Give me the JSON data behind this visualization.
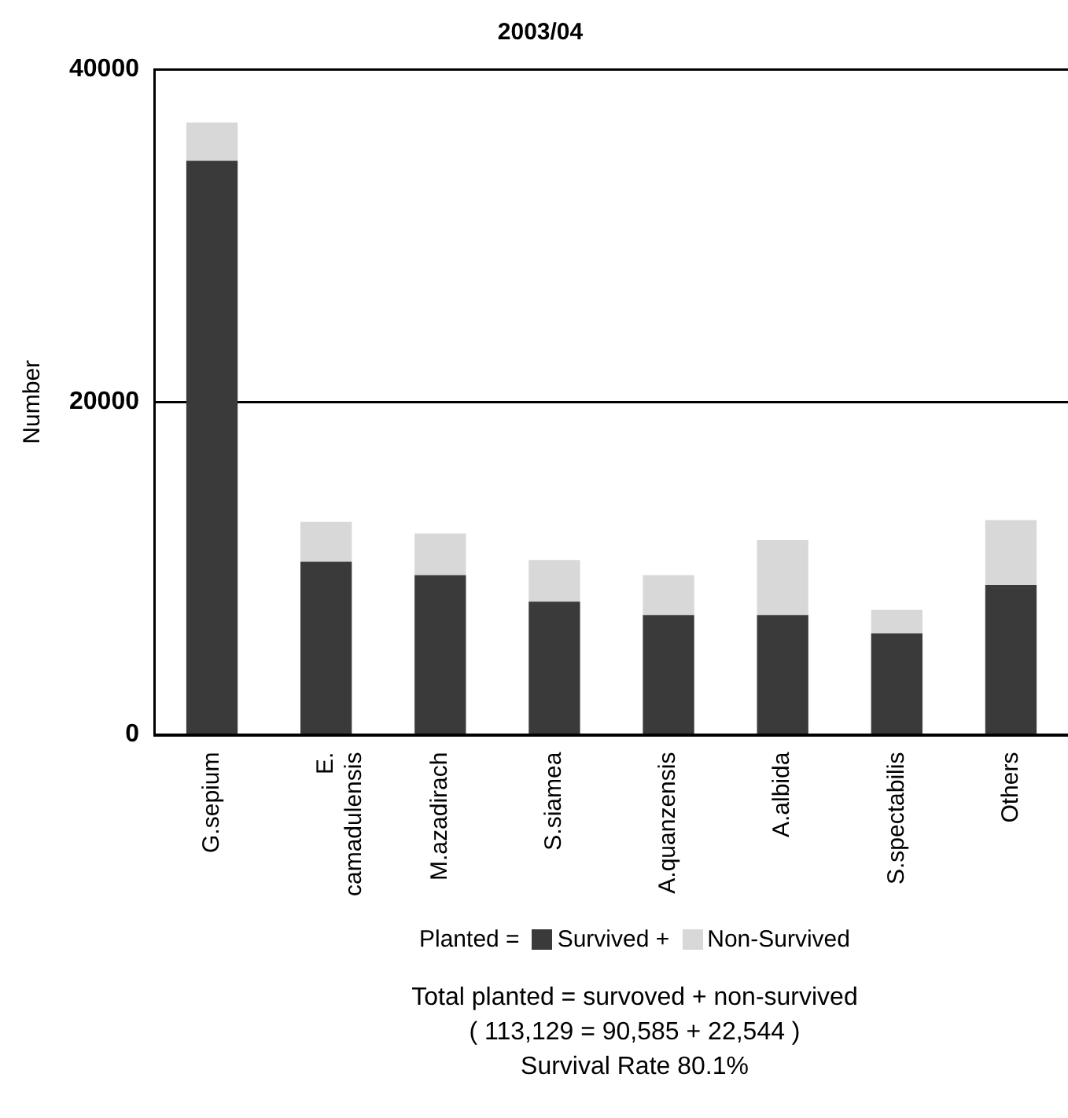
{
  "chart_data": {
    "type": "bar",
    "title": "2003/04",
    "ylabel": "Number",
    "stacked": true,
    "categories": [
      "G.sepium",
      "E. camadulensis",
      "M.azadirach",
      "S.siamea",
      "A.quanzensis",
      "A.albida",
      "S.spectabilis",
      "Others"
    ],
    "series": [
      {
        "name": "Survived +",
        "color": "#3a3a3a",
        "values": [
          34500,
          10400,
          9600,
          8000,
          7200,
          7200,
          6100,
          9000
        ]
      },
      {
        "name": "Non-Survived",
        "color": "#d8d8d8",
        "values": [
          2300,
          2400,
          2500,
          2500,
          2400,
          4500,
          1400,
          3900
        ]
      }
    ],
    "ylim": [
      0,
      40000
    ],
    "yticks": [
      0,
      20000,
      40000
    ],
    "grid": "y",
    "legend": "bottom",
    "legend_title": "Planted =",
    "annotations": [
      "Total planted = survoved + non-survived",
      "( 113,129 = 90,585 + 22,544 )",
      "Survival Rate 80.1%"
    ]
  }
}
